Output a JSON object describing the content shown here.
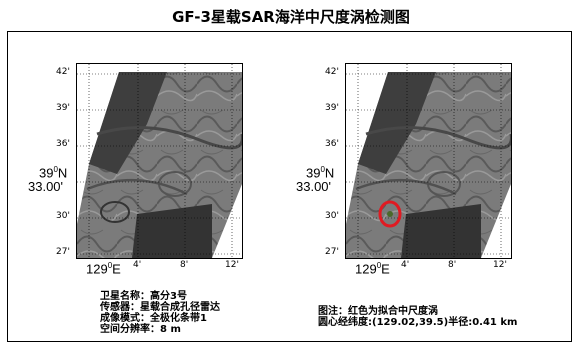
{
  "title": "GF-3星载SAR海洋中尺度涡检测图",
  "maps": [
    {
      "lat_ticks": [
        "42'",
        "39'",
        "36'",
        "33.00'",
        "30'",
        "27'"
      ],
      "lat_main": "39",
      "lat_main_sup": "0",
      "lat_main_suffix": "N",
      "lon_main": "129",
      "lon_main_sup": "0",
      "lon_main_suffix": "E",
      "lon_ticks": [
        "4'",
        "8'",
        "12'"
      ],
      "has_eddy_marker": false
    },
    {
      "lat_ticks": [
        "42'",
        "39'",
        "36'",
        "33.00'",
        "30'",
        "27'"
      ],
      "lat_main": "39",
      "lat_main_sup": "0",
      "lat_main_suffix": "N",
      "lon_main": "129",
      "lon_main_sup": "0",
      "lon_main_suffix": "E",
      "lon_ticks": [
        "4'",
        "8'",
        "12'"
      ],
      "has_eddy_marker": true
    }
  ],
  "info_left": {
    "satellite": "卫星名称：高分3号",
    "sensor": "传感器：星载合成孔径雷达",
    "mode": "成像模式：全极化条带1",
    "resolution": "空间分辨率：8 m"
  },
  "info_right": {
    "legend": "图注：红色为拟合中尺度涡",
    "center": "圆心经纬度:(129.02,39.5)半径:0.41 km"
  },
  "colors": {
    "eddy_marker": "#e01a22",
    "sea_dark": "#3a3a3a",
    "sea_light": "#8a8a8a"
  }
}
